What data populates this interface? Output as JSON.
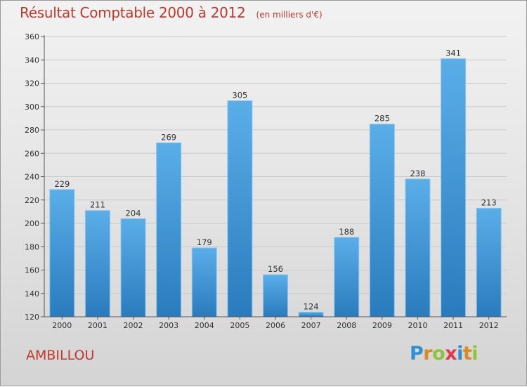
{
  "chart_data": {
    "type": "bar",
    "title": "Résultat Comptable 2000 à 2012",
    "subtitle": "(en milliers d'€)",
    "categories": [
      "2000",
      "2001",
      "2002",
      "2003",
      "2004",
      "2005",
      "2006",
      "2007",
      "2008",
      "2009",
      "2010",
      "2011",
      "2012"
    ],
    "values": [
      229,
      211,
      204,
      269,
      179,
      305,
      156,
      124,
      188,
      285,
      238,
      341,
      213
    ],
    "ylim": [
      120,
      360
    ],
    "yticks": [
      120,
      140,
      160,
      180,
      200,
      220,
      240,
      260,
      280,
      300,
      320,
      340,
      360
    ],
    "grid": true,
    "bar_color": "#3d97d6"
  },
  "commune": "AMBILLOU",
  "logo": {
    "letters": [
      "P",
      "r",
      "o",
      "x",
      "i",
      "t",
      "i"
    ],
    "colors": [
      "#2f8fd0",
      "#e08a1e",
      "#8cc43a",
      "#e2384b",
      "#2f8fd0",
      "#e08a1e",
      "#8cc43a"
    ]
  }
}
